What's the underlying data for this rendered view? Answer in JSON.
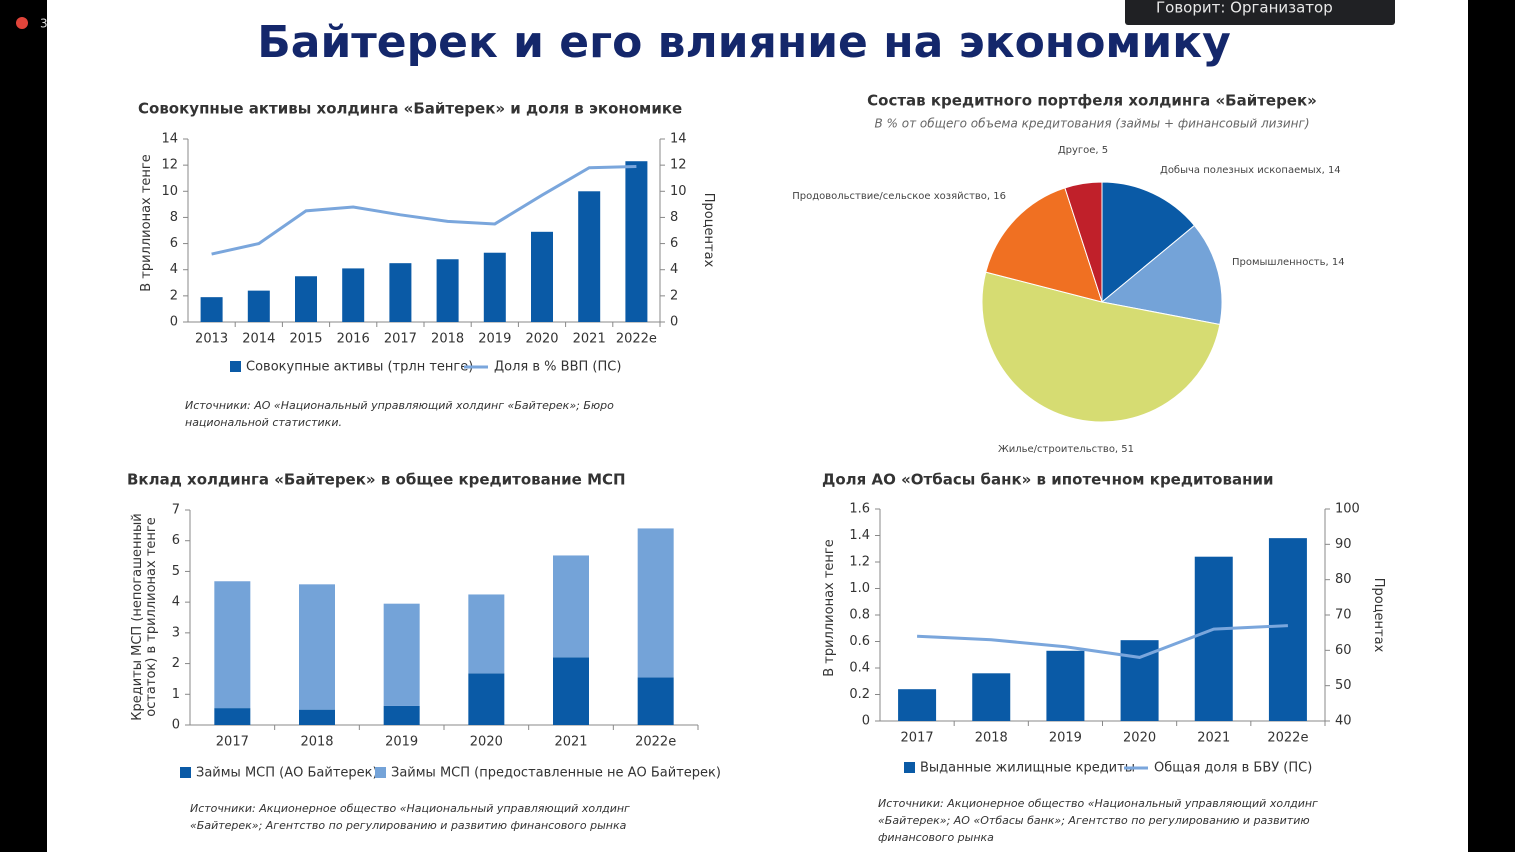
{
  "indicator": "3",
  "speaker_label": "Говорит: Организатор",
  "slide_title": "Байтерек и его влияние на экономику",
  "chart_data": [
    {
      "type": "bar",
      "title": "Совокупные активы холдинга «Байтерек» и доля в экономике",
      "y_label": "В триллионах тенге",
      "y2_label": "Процентах",
      "categories": [
        "2013",
        "2014",
        "2015",
        "2016",
        "2017",
        "2018",
        "2019",
        "2020",
        "2021",
        "2022e"
      ],
      "series": [
        {
          "name": "Совокупные активы (трлн тенге)",
          "type": "bar",
          "color": "#0a5aa6",
          "values": [
            1.9,
            2.4,
            3.5,
            4.1,
            4.5,
            4.8,
            5.3,
            6.9,
            10.0,
            12.3
          ]
        },
        {
          "name": "Доля в % ВВП (ПС)",
          "type": "line",
          "axis": "y2",
          "color": "#7aa6dc",
          "values": [
            5.2,
            6.0,
            8.5,
            8.8,
            8.2,
            7.7,
            7.5,
            9.7,
            11.8,
            11.9
          ]
        }
      ],
      "ylim": [
        0,
        14
      ],
      "yticks": [
        0,
        2,
        4,
        6,
        8,
        10,
        12,
        14
      ],
      "y2lim": [
        0,
        14
      ],
      "y2ticks": [
        0,
        2,
        4,
        6,
        8,
        10,
        12,
        14
      ],
      "source": "Источники: АО «Национальный управляющий холдинг «Байтерек»; Бюро национальной статистики."
    },
    {
      "type": "pie",
      "title": "Состав кредитного портфеля холдинга «Байтерек»",
      "subtitle": "В % от общего объема кредитования (займы + финансовый лизинг)",
      "values": [
        14,
        14,
        51,
        16,
        5
      ],
      "value_labels": [
        "Добыча полезных ископаемых, 14",
        "Промышленность, 14",
        "Жилье/строительство, 51",
        "Продовольствие/сельское хозяйство, 16",
        "Другое, 5"
      ],
      "colors": [
        "#0a5aa6",
        "#74a3d8",
        "#d6dc72",
        "#f07022",
        "#c0202a"
      ]
    },
    {
      "type": "stacked_bar",
      "title": "Вклад холдинга «Байтерек» в общее кредитование МСП",
      "y_label": "Кредиты МСП (непогашенный остаток) в триллионах тенге",
      "categories": [
        "2017",
        "2018",
        "2019",
        "2020",
        "2021",
        "2022e"
      ],
      "series": [
        {
          "name": "Займы МСП (АО Байтерек)",
          "color": "#0a5aa6",
          "values": [
            0.55,
            0.5,
            0.62,
            1.68,
            2.2,
            1.55
          ]
        },
        {
          "name": "Займы МСП (предоставленные не АО Байтерек)",
          "color": "#74a3d8",
          "values": [
            4.13,
            4.08,
            3.33,
            2.57,
            3.32,
            4.85
          ]
        }
      ],
      "ylim": [
        0,
        7
      ],
      "yticks": [
        0,
        1,
        2,
        3,
        4,
        5,
        6,
        7
      ],
      "source": "Источники: Акционерное общество «Национальный управляющий холдинг «Байтерек»; Агентство по регулированию и развитию финансового рынка"
    },
    {
      "type": "bar",
      "title": "Доля АО «Отбасы банк» в ипотечном кредитовании",
      "y_label": "В триллионах тенге",
      "y2_label": "Процентах",
      "categories": [
        "2017",
        "2018",
        "2019",
        "2020",
        "2021",
        "2022e"
      ],
      "series": [
        {
          "name": "Выданные жилищные кредиты",
          "type": "bar",
          "color": "#0a5aa6",
          "values": [
            0.24,
            0.36,
            0.53,
            0.61,
            1.24,
            1.38
          ]
        },
        {
          "name": "Общая доля в БВУ (ПС)",
          "type": "line",
          "axis": "y2",
          "color": "#7aa6dc",
          "values": [
            64,
            63,
            61,
            58,
            66,
            67
          ]
        }
      ],
      "ylim": [
        0,
        1.6
      ],
      "yticks": [
        0,
        0.2,
        0.4,
        0.6,
        0.8,
        {
          "value": 1,
          "label": "1.0"
        },
        1.2,
        1.4,
        1.6
      ],
      "y2lim": [
        40,
        100
      ],
      "y2ticks": [
        40,
        50,
        60,
        70,
        80,
        90,
        100
      ],
      "source": "Источники: Акционерное общество «Национальный управляющий холдинг «Байтерек»; АО «Отбасы банк»; Агентство по регулированию и развитию финансового рынка"
    }
  ]
}
